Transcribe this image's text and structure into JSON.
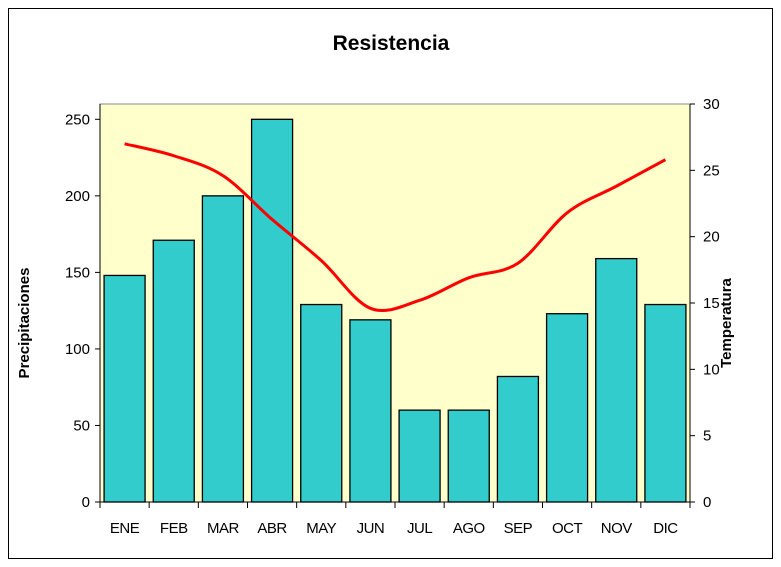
{
  "chart_data": {
    "type": "bar+line",
    "title": "Resistencia",
    "categories": [
      "ENE",
      "FEB",
      "MAR",
      "ABR",
      "MAY",
      "JUN",
      "JUL",
      "AGO",
      "SEP",
      "OCT",
      "NOV",
      "DIC"
    ],
    "series": [
      {
        "name": "Precipitaciones",
        "type": "bar",
        "axis": "left",
        "values": [
          148,
          171,
          200,
          250,
          129,
          119,
          60,
          60,
          82,
          123,
          159,
          129
        ]
      },
      {
        "name": "Temperatura",
        "type": "line",
        "axis": "right",
        "values": [
          27.0,
          26.1,
          24.6,
          21.3,
          18.2,
          14.6,
          15.2,
          16.9,
          18.0,
          21.8,
          23.8,
          25.8
        ]
      }
    ],
    "ylabel": "Precipitaciones",
    "y2label": "Temperatura",
    "ylim": [
      0,
      260
    ],
    "y2lim": [
      0,
      30
    ],
    "yticks": [
      0,
      50,
      100,
      150,
      200,
      250
    ],
    "y2ticks": [
      0,
      5,
      10,
      15,
      20,
      25,
      30
    ],
    "grid": false,
    "colors": {
      "bar": "#33CCCC",
      "line": "#FF0000",
      "plot_bg": "#FFFFCC"
    }
  }
}
